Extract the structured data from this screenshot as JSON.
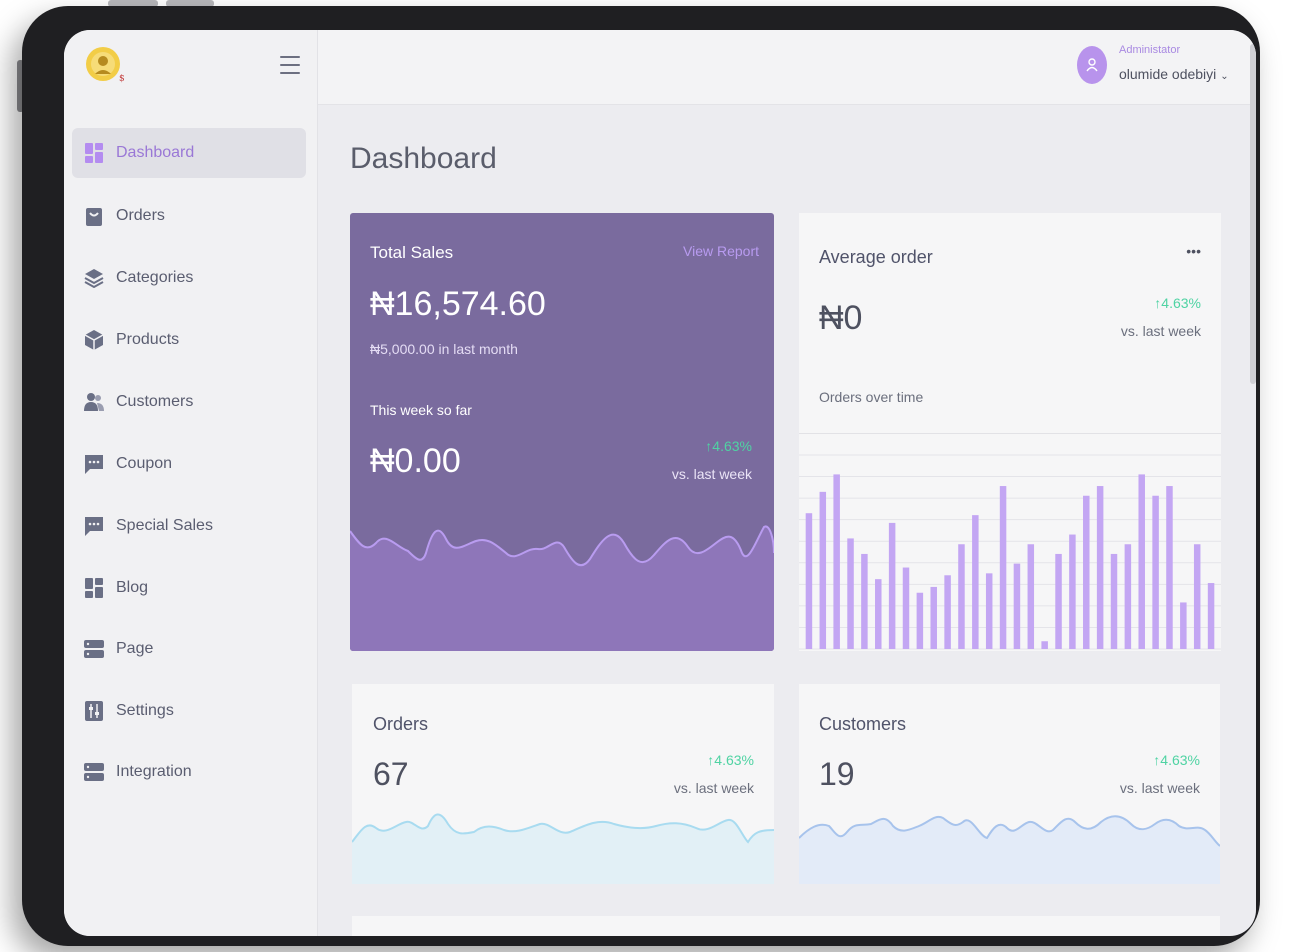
{
  "app": {
    "admin_role": "Administator",
    "admin_name": "olumide odebiyi"
  },
  "sidebar": {
    "items": [
      {
        "label": "Dashboard"
      },
      {
        "label": "Orders"
      },
      {
        "label": "Categories"
      },
      {
        "label": "Products"
      },
      {
        "label": "Customers"
      },
      {
        "label": "Coupon"
      },
      {
        "label": "Special Sales"
      },
      {
        "label": "Blog"
      },
      {
        "label": "Page"
      },
      {
        "label": "Settings"
      },
      {
        "label": "Integration"
      }
    ]
  },
  "page": {
    "title": "Dashboard"
  },
  "total_sales": {
    "title": "Total Sales",
    "link": "View Report",
    "amount": "₦16,574.60",
    "last_month": "₦5,000.00 in last month",
    "week_label": "This week so far",
    "week_amount": "₦0.00",
    "change": "4.63%",
    "vs": "vs. last week"
  },
  "average_order": {
    "title": "Average order",
    "menu": "•••",
    "amount": "₦0",
    "change": "4.63%",
    "vs": "vs. last week",
    "sub": "Orders over time"
  },
  "orders_card": {
    "title": "Orders",
    "value": "67",
    "change": "4.63%",
    "vs": "vs. last week"
  },
  "customers_card": {
    "title": "Customers",
    "value": "19",
    "change": "4.63%",
    "vs": "vs. last week"
  },
  "chart_data": {
    "type": "bar",
    "values": [
      70,
      81,
      90,
      57,
      49,
      36,
      65,
      42,
      29,
      32,
      38,
      54,
      69,
      39,
      84,
      44,
      54,
      4,
      49,
      59,
      79,
      84,
      49,
      54,
      90,
      79,
      84,
      24,
      54,
      34
    ]
  },
  "colors": {
    "accent": "#9a78d6",
    "card_purple": "#7a6b9e",
    "bar": "#c3a6f3",
    "up": "#4fd3a3"
  }
}
